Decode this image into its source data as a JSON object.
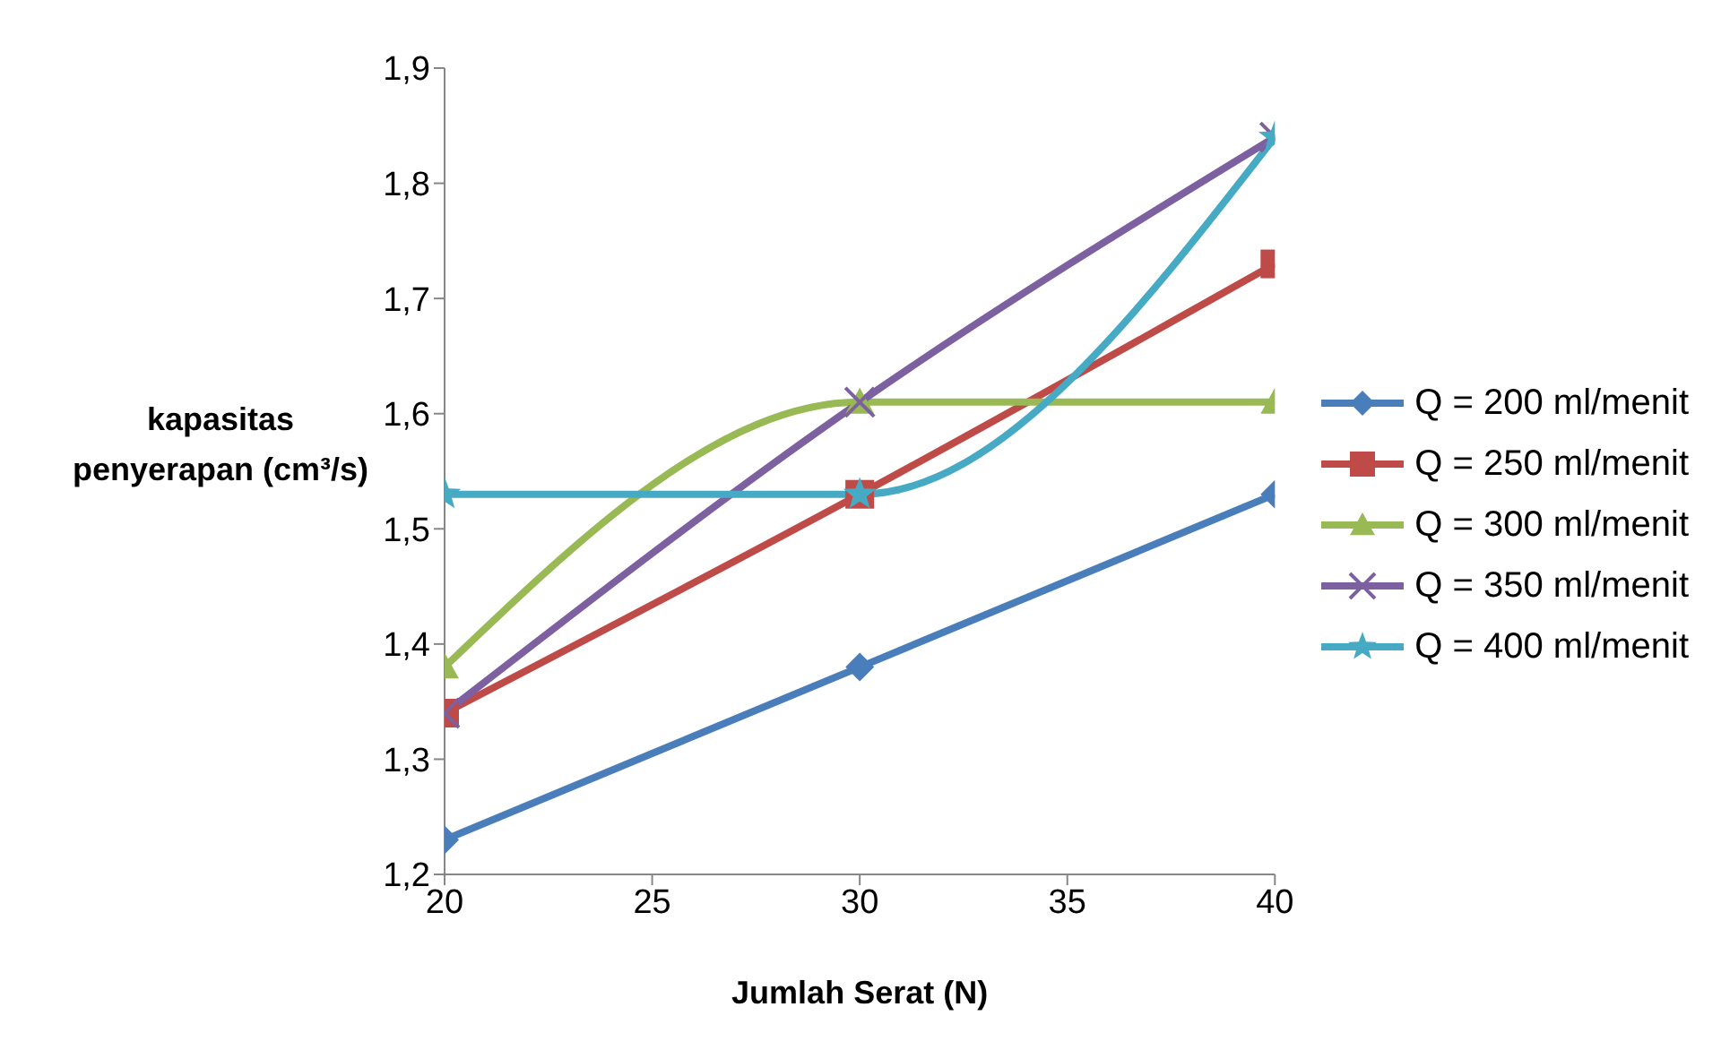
{
  "chart_data": {
    "type": "line",
    "xlabel": "Jumlah Serat (N)",
    "ylabel": "kapasitas penyerapan (cm³/s)",
    "x": [
      20,
      30,
      40
    ],
    "series": [
      {
        "name": "Q = 200 ml/menit",
        "color": "#4a7ebb",
        "marker": "diamond",
        "values": [
          1.23,
          1.38,
          1.53
        ]
      },
      {
        "name": "Q = 250 ml/menit",
        "color": "#be4b48",
        "marker": "square",
        "values": [
          1.34,
          1.53,
          1.73
        ]
      },
      {
        "name": "Q = 300 ml/menit",
        "color": "#98b954",
        "marker": "triangle",
        "values": [
          1.38,
          1.61,
          1.61
        ]
      },
      {
        "name": "Q = 350 ml/menit",
        "color": "#7d60a0",
        "marker": "cross",
        "values": [
          1.34,
          1.61,
          1.84
        ]
      },
      {
        "name": "Q = 400 ml/menit",
        "color": "#46aac5",
        "marker": "star",
        "values": [
          1.53,
          1.53,
          1.84
        ]
      }
    ],
    "xlim": [
      20,
      40
    ],
    "xticks": [
      20,
      25,
      30,
      35,
      40
    ],
    "ylim": [
      1.2,
      1.9
    ],
    "yticks": [
      {
        "value": 1.2,
        "label": "1,2"
      },
      {
        "value": 1.3,
        "label": "1,3"
      },
      {
        "value": 1.4,
        "label": "1,4"
      },
      {
        "value": 1.5,
        "label": "1,5"
      },
      {
        "value": 1.6,
        "label": "1,6"
      },
      {
        "value": 1.7,
        "label": "1,7"
      },
      {
        "value": 1.8,
        "label": "1,8"
      },
      {
        "value": 1.9,
        "label": "1,9"
      }
    ],
    "grid": false,
    "legend": "right",
    "line_style": "solid"
  }
}
